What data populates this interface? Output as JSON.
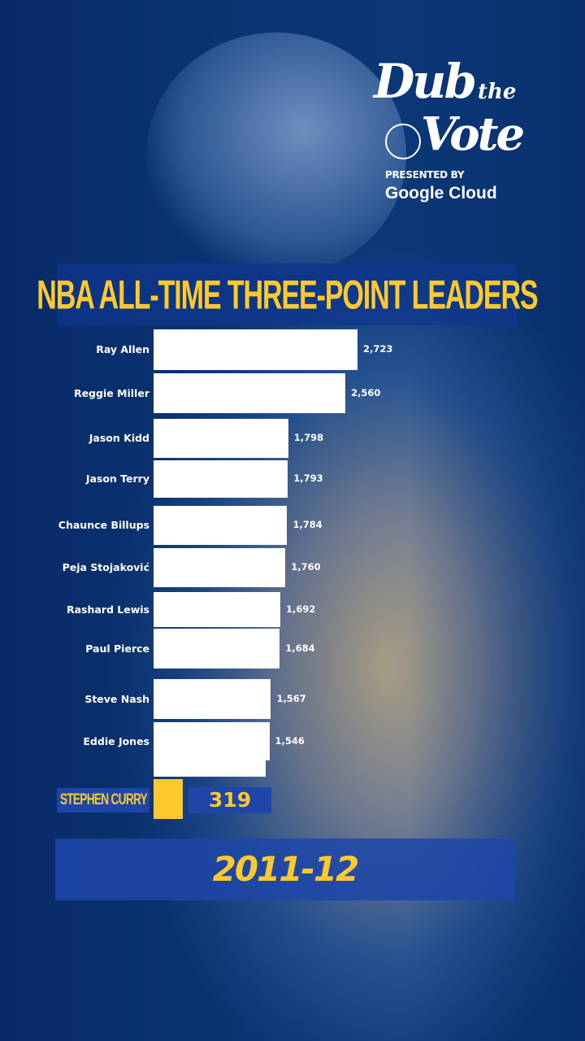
{
  "logo": {
    "line1": "Dub",
    "line2": "the",
    "line3": "Vote",
    "presented_by": "PRESENTED BY",
    "sponsor": "Google Cloud"
  },
  "colors": {
    "accent": "#fdc92f",
    "background": "#0b3a7a",
    "label_box": "#1d46a8",
    "bar": "#ffffff"
  },
  "chart_data": {
    "type": "bar",
    "orientation": "horizontal",
    "title": "NBA ALL-TIME THREE-POINT LEADERS",
    "categories": [
      "Ray Allen",
      "Reggie Miller",
      "Jason Kidd",
      "Jason Terry",
      "Chaunce Billups",
      "Peja Stojaković",
      "Rashard Lewis",
      "Paul Pierce",
      "Steve Nash",
      "Eddie Jones"
    ],
    "values": [
      2723,
      2560,
      1798,
      1793,
      1784,
      1760,
      1692,
      1684,
      1567,
      1546
    ],
    "value_labels": [
      "2,723",
      "2,560",
      "1,798",
      "1,793",
      "1,784",
      "1,760",
      "1,692",
      "1,684",
      "1,567",
      "1,546"
    ],
    "highlight": {
      "name": "STEPHEN CURRY",
      "value": 319,
      "value_label": "319"
    },
    "period": "2011-12",
    "xlim": [
      0,
      2723
    ]
  }
}
